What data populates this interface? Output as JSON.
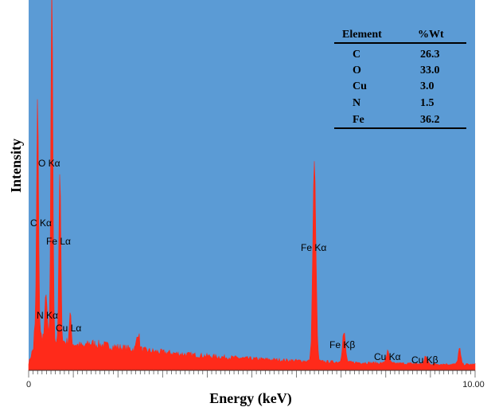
{
  "colors": {
    "plot_background": "#5b9bd5",
    "spectrum": "#ff2a1a",
    "page_background": "#ffffff"
  },
  "chart_data": {
    "type": "area",
    "title": "",
    "xlabel": "Energy (keV)",
    "ylabel": "Intensity",
    "xlim": [
      0,
      10
    ],
    "ylim": [
      0,
      100
    ],
    "x_tick_labels": [
      {
        "x": 0,
        "label": "0"
      },
      {
        "x": 10,
        "label": "10.00"
      }
    ],
    "minor_tick_step": 0.1,
    "major_tick_step": 1,
    "grid": false,
    "legend": "none",
    "peaks": [
      {
        "label": "C Kα",
        "energy": 0.2,
        "height": 66
      },
      {
        "label": "N Kα",
        "energy": 0.39,
        "height": 13
      },
      {
        "label": "O Kα",
        "energy": 0.52,
        "height": 100
      },
      {
        "label": "Fe Lα",
        "energy": 0.7,
        "height": 47
      },
      {
        "label": "Cu Lα",
        "energy": 0.93,
        "height": 8
      },
      {
        "label": "Fe Kα",
        "energy": 6.4,
        "height": 55
      },
      {
        "label": "Fe Kβ",
        "energy": 7.06,
        "height": 8
      },
      {
        "label": "Cu Kα",
        "energy": 8.04,
        "height": 3
      },
      {
        "label": "Cu Kβ",
        "energy": 8.9,
        "height": 2
      }
    ],
    "extra_bumps": [
      {
        "energy": 2.45,
        "height": 5
      },
      {
        "energy": 9.65,
        "height": 4
      }
    ],
    "table": {
      "headers": [
        "Element",
        "%Wt"
      ],
      "rows": [
        [
          "C",
          "26.3"
        ],
        [
          "O",
          "33.0"
        ],
        [
          "Cu",
          "3.0"
        ],
        [
          "N",
          "1.5"
        ],
        [
          "Fe",
          "36.2"
        ]
      ]
    }
  }
}
